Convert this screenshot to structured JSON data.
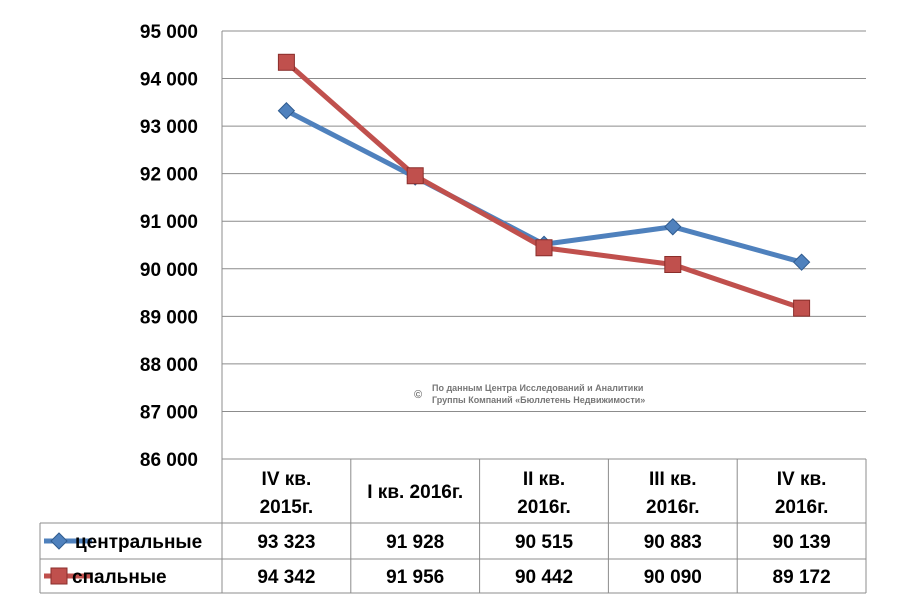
{
  "chart_data": {
    "type": "line",
    "categories": [
      [
        "IV кв.",
        "2015г."
      ],
      [
        "I кв. 2016г."
      ],
      [
        "II кв.",
        "2016г."
      ],
      [
        "III кв.",
        "2016г."
      ],
      [
        "IV кв.",
        "2016г."
      ]
    ],
    "ylim": [
      86000,
      95000
    ],
    "ystep": 1000,
    "ytick_labels": [
      "86 000",
      "87 000",
      "88 000",
      "89 000",
      "90 000",
      "91 000",
      "92 000",
      "93 000",
      "94 000",
      "95 000"
    ],
    "grid": true,
    "series": [
      {
        "name": "центральные",
        "marker": "diamond",
        "color": "#4F81BD",
        "values": [
          93323,
          91928,
          90515,
          90883,
          90139
        ],
        "labels": [
          "93 323",
          "91 928",
          "90 515",
          "90 883",
          "90 139"
        ]
      },
      {
        "name": "спальные",
        "marker": "square",
        "color": "#C0504D",
        "values": [
          94342,
          91956,
          90442,
          90090,
          89172
        ],
        "labels": [
          "94 342",
          "91 956",
          "90 442",
          "90 090",
          "89 172"
        ]
      }
    ],
    "data_table": true,
    "watermark": {
      "symbol": "©",
      "lines": [
        "По данным Центра Исследований и Аналитики",
        "Группы Компаний «Бюллетень Недвижимости»"
      ]
    }
  }
}
